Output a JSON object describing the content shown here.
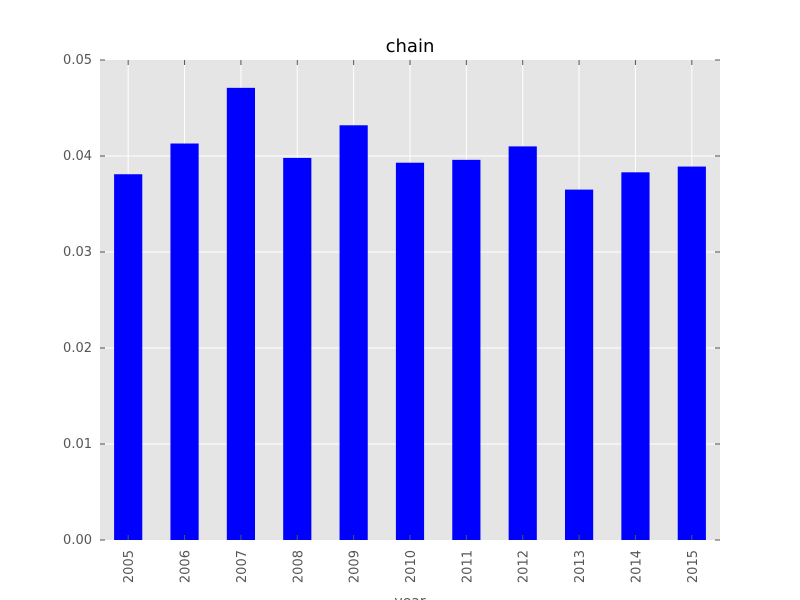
{
  "chart_data": {
    "type": "bar",
    "title": "chain",
    "xlabel": "year",
    "ylabel": "",
    "categories": [
      "2005",
      "2006",
      "2007",
      "2008",
      "2009",
      "2010",
      "2011",
      "2012",
      "2013",
      "2014",
      "2015"
    ],
    "values": [
      0.0381,
      0.0413,
      0.0471,
      0.0398,
      0.0432,
      0.0393,
      0.0396,
      0.041,
      0.0365,
      0.0383,
      0.0389
    ],
    "ylim": [
      0,
      0.05
    ],
    "yticks": [
      "0.00",
      "0.01",
      "0.02",
      "0.03",
      "0.04",
      "0.05"
    ],
    "grid": true,
    "legend": "none",
    "colors": {
      "bar": "#0000ff",
      "plot_background": "#e5e5e5",
      "grid": "#ffffff",
      "tick_text": "#555555"
    }
  }
}
